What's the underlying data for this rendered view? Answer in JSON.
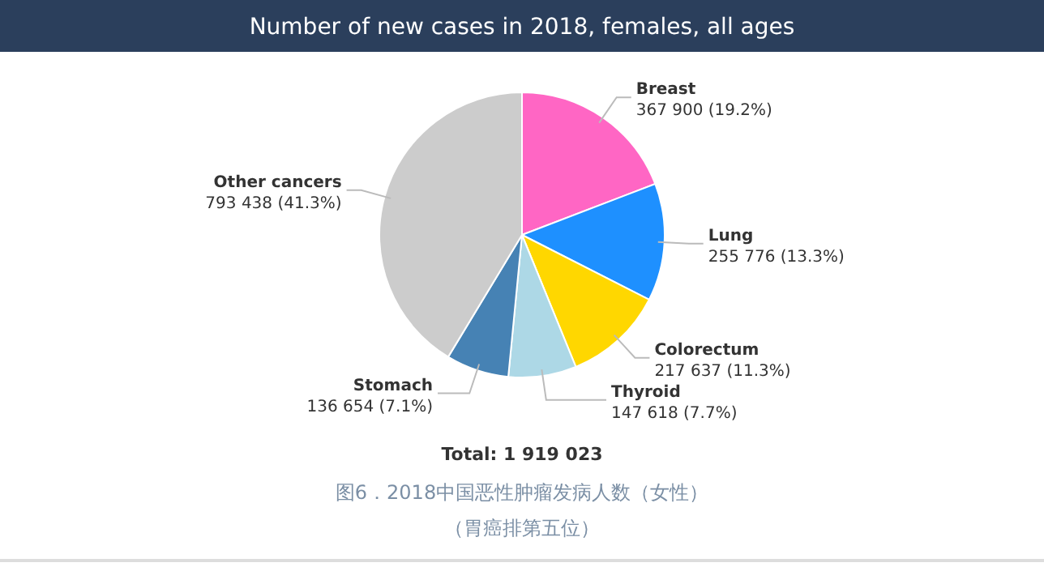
{
  "chart_data": {
    "type": "pie",
    "title": "Number of new cases in 2018, females, all ages",
    "categories": [
      "Breast",
      "Lung",
      "Colorectum",
      "Thyroid",
      "Stomach",
      "Other cancers"
    ],
    "values": [
      367900,
      255776,
      217637,
      147618,
      136654,
      793438
    ],
    "value_labels": [
      "367 900 (19.2%)",
      "255 776 (13.3%)",
      "217 637 (11.3%)",
      "147 618 (7.7%)",
      "136 654 (7.1%)",
      "793 438 (41.3%)"
    ],
    "colors": [
      "#ff66c4",
      "#1e90ff",
      "#ffd700",
      "#add8e6",
      "#4682b4",
      "#cccccc"
    ],
    "annotations": [
      "Total: 1 919 023",
      "图6．2018中国恶性肿瘤发病人数（女性）",
      "（胃癌排第五位）"
    ]
  }
}
